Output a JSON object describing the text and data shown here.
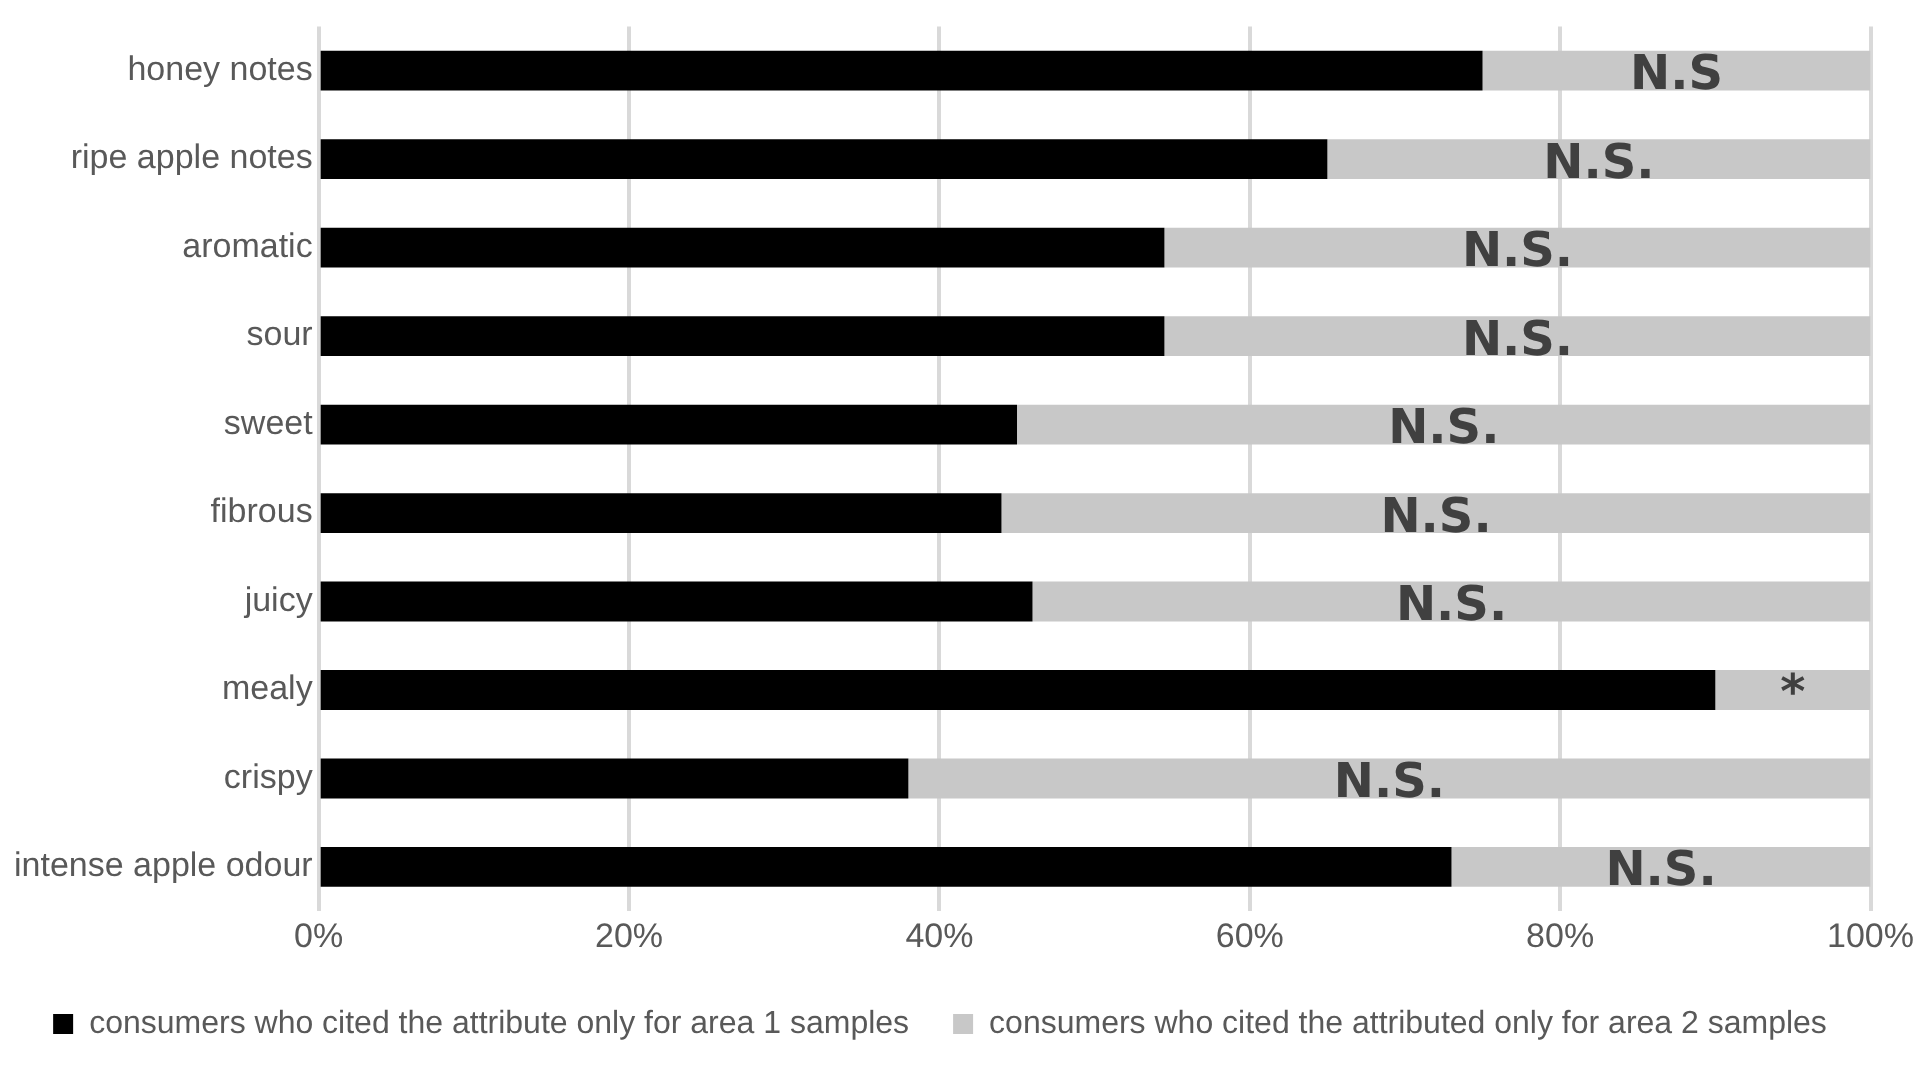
{
  "chart_data": {
    "type": "bar",
    "orientation": "horizontal",
    "stacked": true,
    "categories": [
      "honey notes",
      "ripe apple notes",
      "aromatic",
      "sour",
      "sweet",
      "fibrous",
      "juicy",
      "mealy",
      "crispy",
      "intense apple odour"
    ],
    "series": [
      {
        "name": "consumers who cited the attribute only for area 1 samples",
        "color": "#000000",
        "values": [
          75,
          65,
          54.5,
          54.5,
          45,
          44,
          46,
          90,
          38,
          73
        ]
      },
      {
        "name": "consumers who cited the attributed only for area 2 samples",
        "color": "#c8c8c8",
        "values": [
          25,
          35,
          45.5,
          45.5,
          55,
          56,
          54,
          10,
          62,
          27
        ]
      }
    ],
    "xlim": [
      0,
      100
    ],
    "xticks": [
      {
        "value": 0,
        "label": "0%"
      },
      {
        "value": 20,
        "label": "20%"
      },
      {
        "value": 40,
        "label": "40%"
      },
      {
        "value": 60,
        "label": "60%"
      },
      {
        "value": 80,
        "label": "80%"
      },
      {
        "value": 100,
        "label": "100%"
      }
    ],
    "grid": "x",
    "legend": "bottom",
    "annotations": [
      "N.S",
      "N.S.",
      "N.S.",
      "N.S.",
      "N.S.",
      "N.S.",
      "N.S.",
      "*",
      "N.S.",
      "N.S."
    ]
  }
}
